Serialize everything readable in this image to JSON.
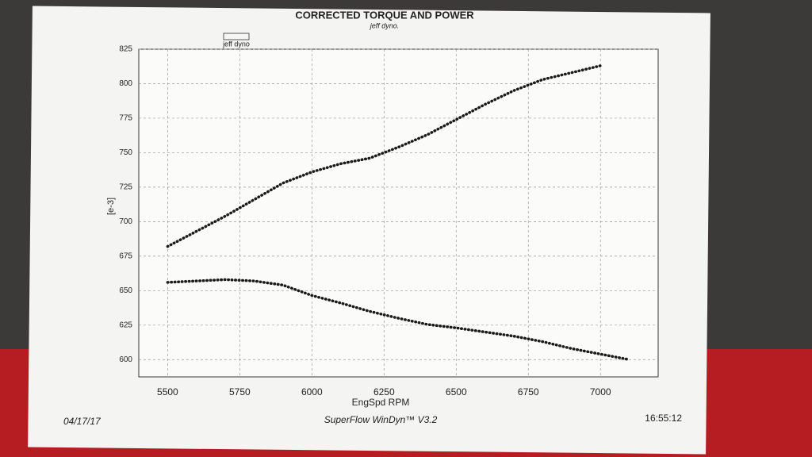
{
  "chart_data": {
    "type": "line",
    "title": "CORRECTED TORQUE AND POWER",
    "subtitle": "jeff dyno.",
    "legend": "jeff dyno",
    "x_label": "EngSpd RPM",
    "y_label": "[e-3]",
    "x": [
      5500,
      5600,
      5700,
      5800,
      5900,
      6000,
      6100,
      6200,
      6300,
      6400,
      6500,
      6600,
      6700,
      6800,
      6900,
      7000,
      7100
    ],
    "series": [
      {
        "color": "#1a1a1a",
        "values": [
          682,
          693,
          704,
          716,
          728,
          736,
          742,
          746,
          754,
          763,
          774,
          785,
          795,
          803,
          808,
          813,
          null
        ]
      },
      {
        "color": "#1a1a1a",
        "values": [
          656,
          657,
          658,
          657,
          654,
          646.5,
          641,
          635,
          630,
          625.5,
          623,
          620,
          617,
          613,
          608,
          604,
          600
        ]
      }
    ],
    "xlim": [
      5400,
      7200
    ],
    "ylim": [
      587.5,
      825
    ],
    "xticks": [
      5500,
      5750,
      6000,
      6250,
      6500,
      6750,
      7000
    ],
    "yticks": [
      600,
      625,
      650,
      675,
      700,
      725,
      750,
      775,
      800,
      825
    ],
    "grid": true
  },
  "footer": {
    "date": "04/17/17",
    "software": "SuperFlow WinDyn™ V3.2",
    "time": "16:55:12"
  }
}
